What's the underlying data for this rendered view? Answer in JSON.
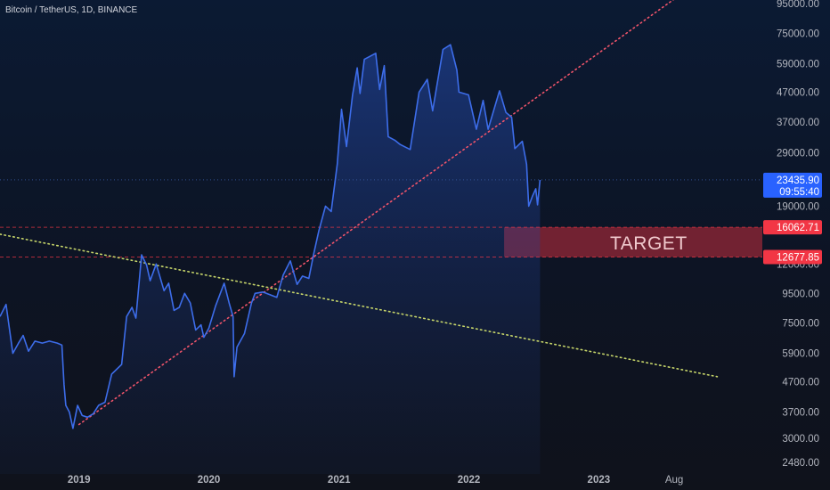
{
  "header": {
    "symbol_title": "Bitcoin / TetherUS, 1D, BINANCE"
  },
  "colors": {
    "price_line": "#3d6dea",
    "price_fill": "#1f3f8f",
    "support_line": "#f0546a",
    "resistance_line": "#c7d66a",
    "target_zone": "#9e2838",
    "price_tag": "#2962ff",
    "level_tag": "#f23645"
  },
  "chart_data": {
    "type": "line",
    "title": "",
    "xlabel": "",
    "ylabel": "",
    "y_scale": "log",
    "ylim": [
      2300,
      110000
    ],
    "grid": false,
    "y_ticks": [
      "95000.00",
      "75000.00",
      "59000.00",
      "47000.00",
      "37000.00",
      "29000.00",
      "19000.00",
      "12000.00",
      "9500.00",
      "7500.00",
      "5900.00",
      "4700.00",
      "3700.00",
      "3000.00",
      "2480.00"
    ],
    "x_ticks": [
      {
        "label": "2019",
        "date": "2019-01-01",
        "bold": true
      },
      {
        "label": "2020",
        "date": "2020-01-01",
        "bold": true
      },
      {
        "label": "2021",
        "date": "2021-01-01",
        "bold": true
      },
      {
        "label": "2022",
        "date": "2022-01-01",
        "bold": true
      },
      {
        "label": "2023",
        "date": "2023-01-01",
        "bold": true
      },
      {
        "label": "Aug",
        "date": "2023-08-01",
        "bold": false
      }
    ],
    "series": [
      {
        "points": [
          [
            "2018-05-24",
            7900
          ],
          [
            "2018-06-10",
            8700
          ],
          [
            "2018-06-29",
            5900
          ],
          [
            "2018-07-15",
            6400
          ],
          [
            "2018-07-28",
            6800
          ],
          [
            "2018-08-12",
            6000
          ],
          [
            "2018-08-30",
            6500
          ],
          [
            "2018-09-20",
            6400
          ],
          [
            "2018-10-10",
            6500
          ],
          [
            "2018-11-01",
            6400
          ],
          [
            "2018-11-14",
            6300
          ],
          [
            "2018-11-20",
            4600
          ],
          [
            "2018-11-25",
            3900
          ],
          [
            "2018-12-05",
            3700
          ],
          [
            "2018-12-15",
            3250
          ],
          [
            "2018-12-28",
            3900
          ],
          [
            "2019-01-10",
            3600
          ],
          [
            "2019-01-25",
            3550
          ],
          [
            "2019-02-10",
            3650
          ],
          [
            "2019-02-25",
            3900
          ],
          [
            "2019-03-15",
            4000
          ],
          [
            "2019-04-03",
            5000
          ],
          [
            "2019-05-01",
            5400
          ],
          [
            "2019-05-15",
            7900
          ],
          [
            "2019-05-30",
            8500
          ],
          [
            "2019-06-10",
            7800
          ],
          [
            "2019-06-26",
            12900
          ],
          [
            "2019-07-10",
            11900
          ],
          [
            "2019-07-20",
            10500
          ],
          [
            "2019-08-06",
            12000
          ],
          [
            "2019-08-28",
            9700
          ],
          [
            "2019-09-10",
            10300
          ],
          [
            "2019-09-25",
            8300
          ],
          [
            "2019-10-10",
            8500
          ],
          [
            "2019-10-25",
            9500
          ],
          [
            "2019-11-10",
            8800
          ],
          [
            "2019-11-25",
            7100
          ],
          [
            "2019-12-10",
            7400
          ],
          [
            "2019-12-18",
            6700
          ],
          [
            "2020-01-01",
            7200
          ],
          [
            "2020-01-20",
            8600
          ],
          [
            "2020-02-13",
            10300
          ],
          [
            "2020-02-27",
            8800
          ],
          [
            "2020-03-09",
            7900
          ],
          [
            "2020-03-12",
            4900
          ],
          [
            "2020-03-20",
            6200
          ],
          [
            "2020-04-10",
            6900
          ],
          [
            "2020-04-30",
            8800
          ],
          [
            "2020-05-10",
            9500
          ],
          [
            "2020-06-01",
            9600
          ],
          [
            "2020-07-10",
            9200
          ],
          [
            "2020-07-28",
            11000
          ],
          [
            "2020-08-17",
            12300
          ],
          [
            "2020-09-05",
            10200
          ],
          [
            "2020-09-20",
            10900
          ],
          [
            "2020-10-08",
            10700
          ],
          [
            "2020-10-21",
            12900
          ],
          [
            "2020-11-05",
            15600
          ],
          [
            "2020-11-24",
            19000
          ],
          [
            "2020-12-10",
            18200
          ],
          [
            "2020-12-27",
            26500
          ],
          [
            "2021-01-08",
            41000
          ],
          [
            "2021-01-22",
            30500
          ],
          [
            "2021-02-08",
            46000
          ],
          [
            "2021-02-21",
            57000
          ],
          [
            "2021-03-01",
            46500
          ],
          [
            "2021-03-13",
            61000
          ],
          [
            "2021-04-14",
            64000
          ],
          [
            "2021-04-25",
            48000
          ],
          [
            "2021-05-08",
            58000
          ],
          [
            "2021-05-19",
            33000
          ],
          [
            "2021-06-08",
            32000
          ],
          [
            "2021-06-22",
            31000
          ],
          [
            "2021-07-20",
            29800
          ],
          [
            "2021-08-14",
            47000
          ],
          [
            "2021-09-06",
            52000
          ],
          [
            "2021-09-21",
            40500
          ],
          [
            "2021-10-20",
            66000
          ],
          [
            "2021-11-10",
            68500
          ],
          [
            "2021-11-28",
            56000
          ],
          [
            "2021-12-04",
            47000
          ],
          [
            "2021-12-31",
            46000
          ],
          [
            "2022-01-22",
            35000
          ],
          [
            "2022-02-10",
            44000
          ],
          [
            "2022-02-24",
            35000
          ],
          [
            "2022-03-28",
            47500
          ],
          [
            "2022-04-15",
            40000
          ],
          [
            "2022-05-01",
            38500
          ],
          [
            "2022-05-10",
            30000
          ],
          [
            "2022-05-31",
            31800
          ],
          [
            "2022-06-12",
            26500
          ],
          [
            "2022-06-18",
            19000
          ],
          [
            "2022-06-28",
            20500
          ],
          [
            "2022-07-08",
            21800
          ],
          [
            "2022-07-13",
            19200
          ],
          [
            "2022-07-20",
            23400
          ]
        ]
      }
    ],
    "price_tag": {
      "value": "23435.90",
      "countdown": "09:55:40"
    },
    "levels": [
      {
        "value": "16062.71",
        "price": 16062.71
      },
      {
        "value": "12677.85",
        "price": 12677.85
      }
    ],
    "target_zone": {
      "label": "TARGET",
      "from_date": "2022-04-10",
      "low": 12677.85,
      "high": 16062.71
    },
    "trendlines": [
      {
        "name": "support",
        "from": [
          "2019-01-01",
          3350
        ],
        "to": [
          "2023-09-25",
          110000
        ]
      },
      {
        "name": "resistance",
        "from": [
          "2018-05-24",
          15200
        ],
        "to": [
          "2023-11-30",
          4900
        ]
      }
    ]
  }
}
